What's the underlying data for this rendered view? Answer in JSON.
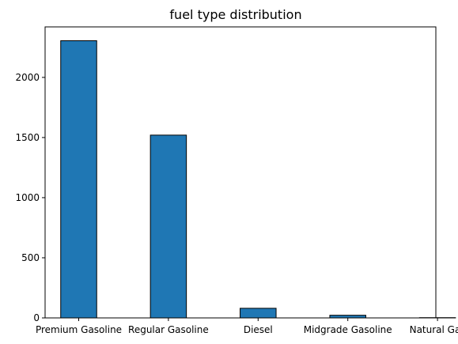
{
  "chart_data": {
    "type": "bar",
    "title": "fuel type distribution",
    "xlabel": "",
    "ylabel": "",
    "categories": [
      "Premium Gasoline",
      "Regular Gasoline",
      "Diesel",
      "Midgrade Gasoline",
      "Natural Gas"
    ],
    "values": [
      2305,
      1520,
      80,
      22,
      2
    ],
    "ylim": [
      0,
      2420
    ],
    "yticks": [
      0,
      500,
      1000,
      1500,
      2000
    ],
    "ytick_labels": [
      "0",
      "500",
      "1000",
      "1500",
      "2000"
    ],
    "grid": false,
    "legend": "none",
    "colors": {
      "bar_fill": "#1f77b4",
      "bar_edge": "#000000",
      "axis": "#000000",
      "background": "#ffffff"
    }
  }
}
